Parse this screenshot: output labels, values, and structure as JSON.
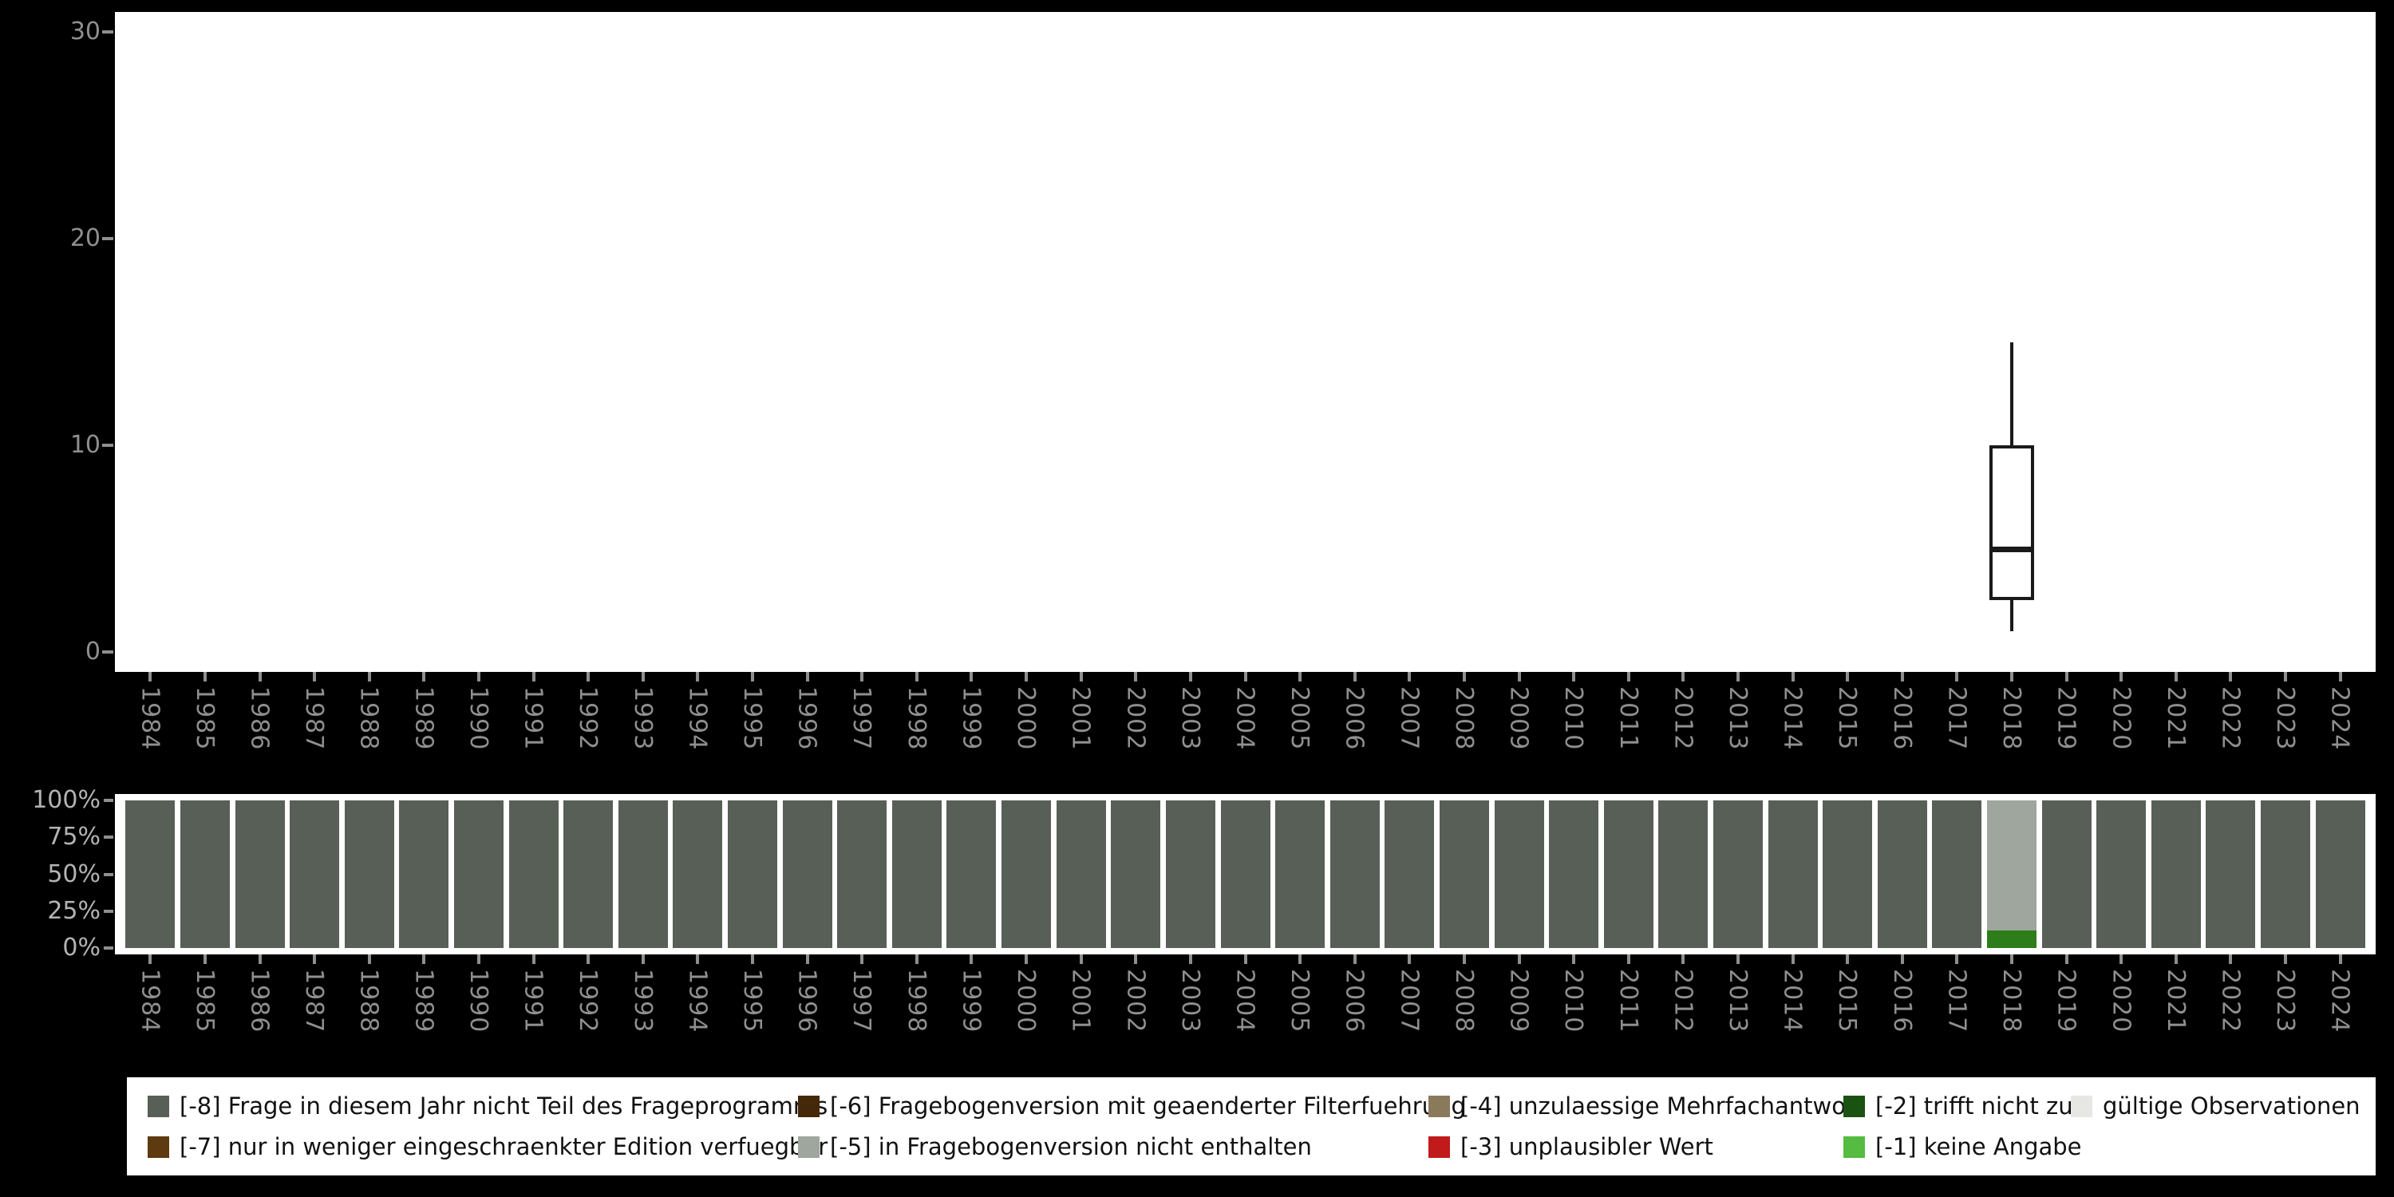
{
  "title": "",
  "chart_data": [
    {
      "type": "boxplot",
      "categories": [
        "1984",
        "1985",
        "1986",
        "1987",
        "1988",
        "1989",
        "1990",
        "1991",
        "1992",
        "1993",
        "1994",
        "1995",
        "1996",
        "1997",
        "1998",
        "1999",
        "2000",
        "2001",
        "2002",
        "2003",
        "2004",
        "2005",
        "2006",
        "2007",
        "2008",
        "2009",
        "2010",
        "2011",
        "2012",
        "2013",
        "2014",
        "2015",
        "2016",
        "2017",
        "2018",
        "2019",
        "2020",
        "2021",
        "2022",
        "2023",
        "2024"
      ],
      "series": [
        {
          "x": "2018",
          "min": 1,
          "q1": 2.5,
          "median": 5,
          "q3": 10,
          "max": 15
        }
      ],
      "ylim": [
        0,
        30
      ],
      "yticks": [
        0,
        10,
        20,
        30
      ],
      "grid": false,
      "plot_bg": "#ffffff"
    },
    {
      "type": "stacked-bar-percent",
      "categories": [
        "1984",
        "1985",
        "1986",
        "1987",
        "1988",
        "1989",
        "1990",
        "1991",
        "1992",
        "1993",
        "1994",
        "1995",
        "1996",
        "1997",
        "1998",
        "1999",
        "2000",
        "2001",
        "2002",
        "2003",
        "2004",
        "2005",
        "2006",
        "2007",
        "2008",
        "2009",
        "2010",
        "2011",
        "2012",
        "2013",
        "2014",
        "2015",
        "2016",
        "2017",
        "2018",
        "2019",
        "2020",
        "2021",
        "2022",
        "2023",
        "2024"
      ],
      "yticks_percent": [
        0,
        25,
        50,
        75,
        100
      ],
      "ylabels": [
        "0%",
        "25%",
        "50%",
        "75%",
        "100%"
      ],
      "default_segments": [
        {
          "key": "-8",
          "color": "#575f57",
          "value": 100
        }
      ],
      "overrides": {
        "2018": [
          {
            "key": "green-segment",
            "color": "#2e7d1b",
            "value": 12
          },
          {
            "key": "-5",
            "color": "#9fa69d",
            "value": 88
          }
        ]
      },
      "plot_bg": "#ffffff"
    }
  ],
  "legend": {
    "items": [
      {
        "key": "-8",
        "color": "#575f57",
        "label": "[-8] Frage in diesem Jahr nicht Teil des Frageprogramms"
      },
      {
        "key": "-7",
        "color": "#5e3a10",
        "label": "[-7] nur in weniger eingeschraenkter Edition verfuegbar"
      },
      {
        "key": "-6",
        "color": "#45280a",
        "label": "[-6] Fragebogenversion mit geaenderter Filterfuehrung"
      },
      {
        "key": "-5",
        "color": "#9fa69d",
        "label": "[-5] in Fragebogenversion nicht enthalten"
      },
      {
        "key": "-4",
        "color": "#8a7a5c",
        "label": "[-4] unzulaessige Mehrfachantwort"
      },
      {
        "key": "-3",
        "color": "#c01a1a",
        "label": "[-3] unplausibler Wert"
      },
      {
        "key": "-2",
        "color": "#1a5212",
        "label": "[-2] trifft nicht zu"
      },
      {
        "key": "-1",
        "color": "#55bb41",
        "label": "[-1] keine Angabe"
      },
      {
        "key": "valid",
        "color": "#e7e7e3",
        "label": "gültige Observationen"
      }
    ]
  },
  "colors": {
    "background": "#000000",
    "axis_label": "#8f8f8f",
    "box_stroke": "#1a1a1a",
    "plot_bg": "#ffffff"
  }
}
